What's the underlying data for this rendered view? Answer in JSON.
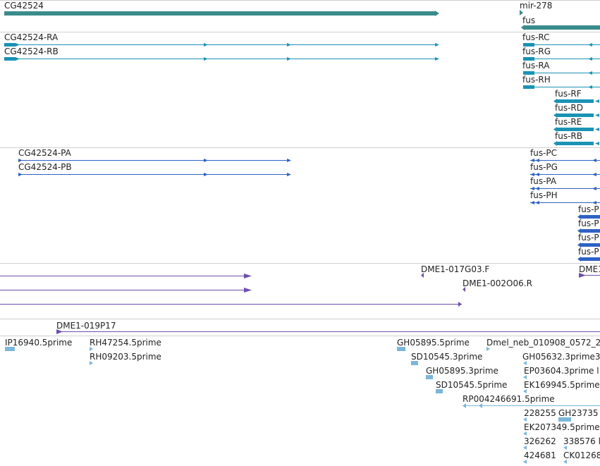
{
  "colors": {
    "gene": "#3a8b8b",
    "transcript": "#1a93b5",
    "protein": "#2e62c4",
    "clone": "#6e4fae",
    "est": "#7bb7da",
    "separator": "#cfcfcf",
    "text": "#222222"
  },
  "tracks": {
    "genes": [
      "CG42524",
      "mir-278",
      "fus"
    ],
    "transcripts": [
      "CG42524-RA",
      "CG42524-RB",
      "fus-RC",
      "fus-RG",
      "fus-RA",
      "fus-RH",
      "fus-RF",
      "fus-RD",
      "fus-RE",
      "fus-RB"
    ],
    "proteins": [
      "CG42524-PA",
      "CG42524-PB",
      "fus-PC",
      "fus-PG",
      "fus-PA",
      "fus-PH",
      "fus-P",
      "fus-P",
      "fus-P",
      "fus-P"
    ],
    "clones": [
      "DME1-017G03.F",
      "DME1-002O06.R",
      "DME1",
      "DME1-019P17"
    ],
    "ests": [
      "IP16940.5prime",
      "RH47254.5prime",
      "RH09203.5prime",
      "GH05895.5prime",
      "Dmel_neb_010908_0572_2",
      "SD10545.3prime",
      "GH05632.3prime3",
      "GH05895.3prime",
      "EP03604.3prime l",
      "SD10545.5prime",
      "EK169945.5prime",
      "RP004246691.5prime",
      "228255",
      "GH23735",
      "EK207349.5prime",
      "326262",
      "338576 l",
      "424681",
      "CK01268"
    ]
  }
}
